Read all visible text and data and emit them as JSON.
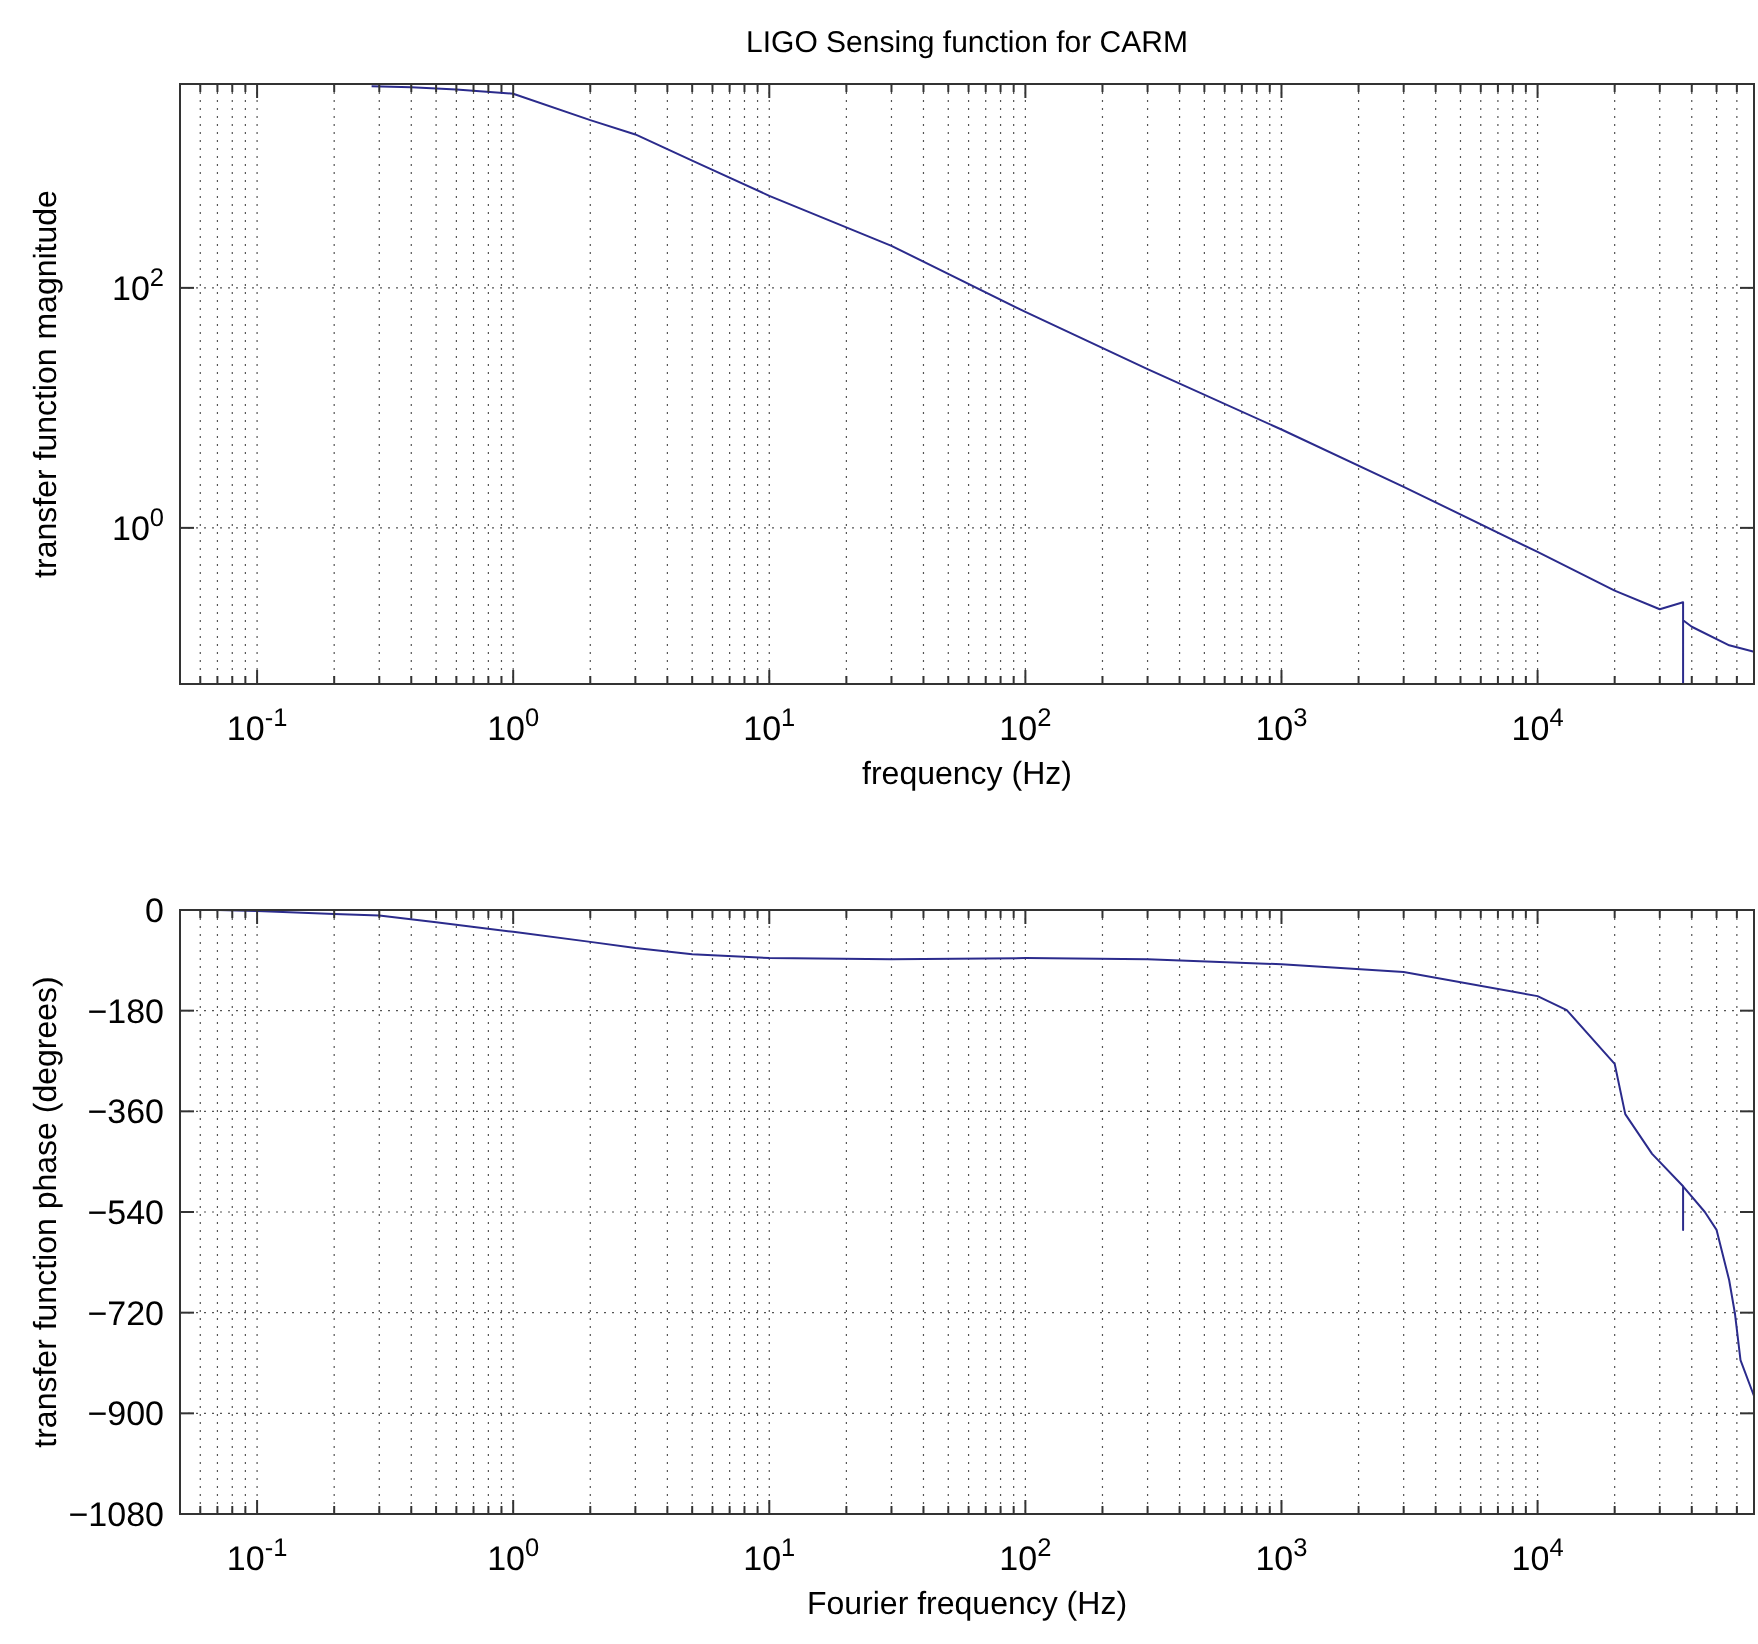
{
  "chart_data": [
    {
      "type": "line",
      "title": "LIGO Sensing function for CARM",
      "xlabel": "frequency (Hz)",
      "ylabel": "transfer function magnitude",
      "log": "xy",
      "grid": true,
      "xlim": [
        0.05,
        70000
      ],
      "ylim": [
        0.05,
        5000
      ],
      "xticks": [
        {
          "value": 0.05,
          "label": null
        },
        {
          "value": 0.06,
          "label": null
        },
        {
          "value": 0.07,
          "label": null
        },
        {
          "value": 0.08,
          "label": null
        },
        {
          "value": 0.09,
          "label": null
        },
        {
          "value": 0.1,
          "label": "10$^{-1}$"
        },
        {
          "value": 0.2,
          "label": null
        },
        {
          "value": 0.3,
          "label": null
        },
        {
          "value": 0.4,
          "label": null
        },
        {
          "value": 0.5,
          "label": null
        },
        {
          "value": 0.6,
          "label": null
        },
        {
          "value": 0.7,
          "label": null
        },
        {
          "value": 0.8,
          "label": null
        },
        {
          "value": 0.9,
          "label": null
        },
        {
          "value": 1,
          "label": "10$^{0}$"
        },
        {
          "value": 2,
          "label": null
        },
        {
          "value": 3,
          "label": null
        },
        {
          "value": 4,
          "label": null
        },
        {
          "value": 5,
          "label": null
        },
        {
          "value": 6,
          "label": null
        },
        {
          "value": 7,
          "label": null
        },
        {
          "value": 8,
          "label": null
        },
        {
          "value": 9,
          "label": null
        },
        {
          "value": 10,
          "label": "10$^{1}$"
        },
        {
          "value": 20,
          "label": null
        },
        {
          "value": 30,
          "label": null
        },
        {
          "value": 40,
          "label": null
        },
        {
          "value": 50,
          "label": null
        },
        {
          "value": 60,
          "label": null
        },
        {
          "value": 70,
          "label": null
        },
        {
          "value": 80,
          "label": null
        },
        {
          "value": 90,
          "label": null
        },
        {
          "value": 100,
          "label": "10$^{2}$"
        },
        {
          "value": 200,
          "label": null
        },
        {
          "value": 300,
          "label": null
        },
        {
          "value": 400,
          "label": null
        },
        {
          "value": 500,
          "label": null
        },
        {
          "value": 600,
          "label": null
        },
        {
          "value": 700,
          "label": null
        },
        {
          "value": 800,
          "label": null
        },
        {
          "value": 900,
          "label": null
        },
        {
          "value": 1000,
          "label": "10$^{3}$"
        },
        {
          "value": 2000,
          "label": null
        },
        {
          "value": 3000,
          "label": null
        },
        {
          "value": 4000,
          "label": null
        },
        {
          "value": 5000,
          "label": null
        },
        {
          "value": 6000,
          "label": null
        },
        {
          "value": 7000,
          "label": null
        },
        {
          "value": 8000,
          "label": null
        },
        {
          "value": 9000,
          "label": null
        },
        {
          "value": 10000,
          "label": "10$^{4}$"
        },
        {
          "value": 20000,
          "label": null
        },
        {
          "value": 30000,
          "label": null
        },
        {
          "value": 40000,
          "label": null
        },
        {
          "value": 50000,
          "label": null
        },
        {
          "value": 60000,
          "label": null
        }
      ],
      "yticks": [
        {
          "value": 1,
          "label": "10$^{0}$"
        },
        {
          "value": 100,
          "label": "10$^{2}$"
        }
      ],
      "series": [
        {
          "color": "#2b2b8c",
          "x": [
            0.28,
            0.4,
            0.6,
            1,
            2,
            3,
            5,
            10,
            30,
            100,
            300,
            1000,
            3000,
            10000,
            20000,
            30000,
            37000,
            37000,
            37000,
            40000,
            56000,
            70000
          ],
          "values": [
            4800,
            4700,
            4500,
            4150,
            2500,
            1900,
            1150,
            585,
            224,
            63,
            21,
            6.6,
            2.2,
            0.63,
            0.3,
            0.21,
            0.24,
            0.05,
            0.17,
            0.15,
            0.105,
            0.093
          ]
        }
      ]
    },
    {
      "type": "line",
      "xlabel": "Fourier frequency (Hz)",
      "ylabel": "transfer function phase (degrees)",
      "log": "x",
      "grid": true,
      "xlim": [
        0.05,
        70000
      ],
      "ylim": [
        -1080,
        0
      ],
      "xticks": [
        {
          "value": 0.05,
          "label": null
        },
        {
          "value": 0.06,
          "label": null
        },
        {
          "value": 0.07,
          "label": null
        },
        {
          "value": 0.08,
          "label": null
        },
        {
          "value": 0.09,
          "label": null
        },
        {
          "value": 0.1,
          "label": "10$^{-1}$"
        },
        {
          "value": 0.2,
          "label": null
        },
        {
          "value": 0.3,
          "label": null
        },
        {
          "value": 0.4,
          "label": null
        },
        {
          "value": 0.5,
          "label": null
        },
        {
          "value": 0.6,
          "label": null
        },
        {
          "value": 0.7,
          "label": null
        },
        {
          "value": 0.8,
          "label": null
        },
        {
          "value": 0.9,
          "label": null
        },
        {
          "value": 1,
          "label": "10$^{0}$"
        },
        {
          "value": 2,
          "label": null
        },
        {
          "value": 3,
          "label": null
        },
        {
          "value": 4,
          "label": null
        },
        {
          "value": 5,
          "label": null
        },
        {
          "value": 6,
          "label": null
        },
        {
          "value": 7,
          "label": null
        },
        {
          "value": 8,
          "label": null
        },
        {
          "value": 9,
          "label": null
        },
        {
          "value": 10,
          "label": "10$^{1}$"
        },
        {
          "value": 20,
          "label": null
        },
        {
          "value": 30,
          "label": null
        },
        {
          "value": 40,
          "label": null
        },
        {
          "value": 50,
          "label": null
        },
        {
          "value": 60,
          "label": null
        },
        {
          "value": 70,
          "label": null
        },
        {
          "value": 80,
          "label": null
        },
        {
          "value": 90,
          "label": null
        },
        {
          "value": 100,
          "label": "10$^{2}$"
        },
        {
          "value": 200,
          "label": null
        },
        {
          "value": 300,
          "label": null
        },
        {
          "value": 400,
          "label": null
        },
        {
          "value": 500,
          "label": null
        },
        {
          "value": 600,
          "label": null
        },
        {
          "value": 700,
          "label": null
        },
        {
          "value": 800,
          "label": null
        },
        {
          "value": 900,
          "label": null
        },
        {
          "value": 1000,
          "label": "10$^{3}$"
        },
        {
          "value": 2000,
          "label": null
        },
        {
          "value": 3000,
          "label": null
        },
        {
          "value": 4000,
          "label": null
        },
        {
          "value": 5000,
          "label": null
        },
        {
          "value": 6000,
          "label": null
        },
        {
          "value": 7000,
          "label": null
        },
        {
          "value": 8000,
          "label": null
        },
        {
          "value": 9000,
          "label": null
        },
        {
          "value": 10000,
          "label": "10$^{4}$"
        },
        {
          "value": 20000,
          "label": null
        },
        {
          "value": 30000,
          "label": null
        },
        {
          "value": 40000,
          "label": null
        },
        {
          "value": 50000,
          "label": null
        },
        {
          "value": 60000,
          "label": null
        }
      ],
      "yticks": [
        -1080,
        -900,
        -720,
        -540,
        -360,
        -180,
        0
      ],
      "series": [
        {
          "color": "#2b2b8c",
          "x": [
            0.07,
            0.1,
            0.2,
            0.3,
            0.5,
            1,
            2,
            3,
            5,
            10,
            30,
            100,
            300,
            1000,
            3000,
            10000,
            13000,
            20000,
            22000,
            28000,
            37000,
            37000,
            37000,
            45000,
            50000,
            56000,
            59000,
            62000,
            70000
          ],
          "values": [
            0,
            -2,
            -7,
            -10,
            -22,
            -39,
            -57,
            -68,
            -79,
            -86,
            -88,
            -86,
            -88,
            -97,
            -111,
            -154,
            -179,
            -275,
            -365,
            -436,
            -494,
            -572,
            -494,
            -540,
            -572,
            -662,
            -722,
            -805,
            -869
          ]
        }
      ]
    }
  ]
}
